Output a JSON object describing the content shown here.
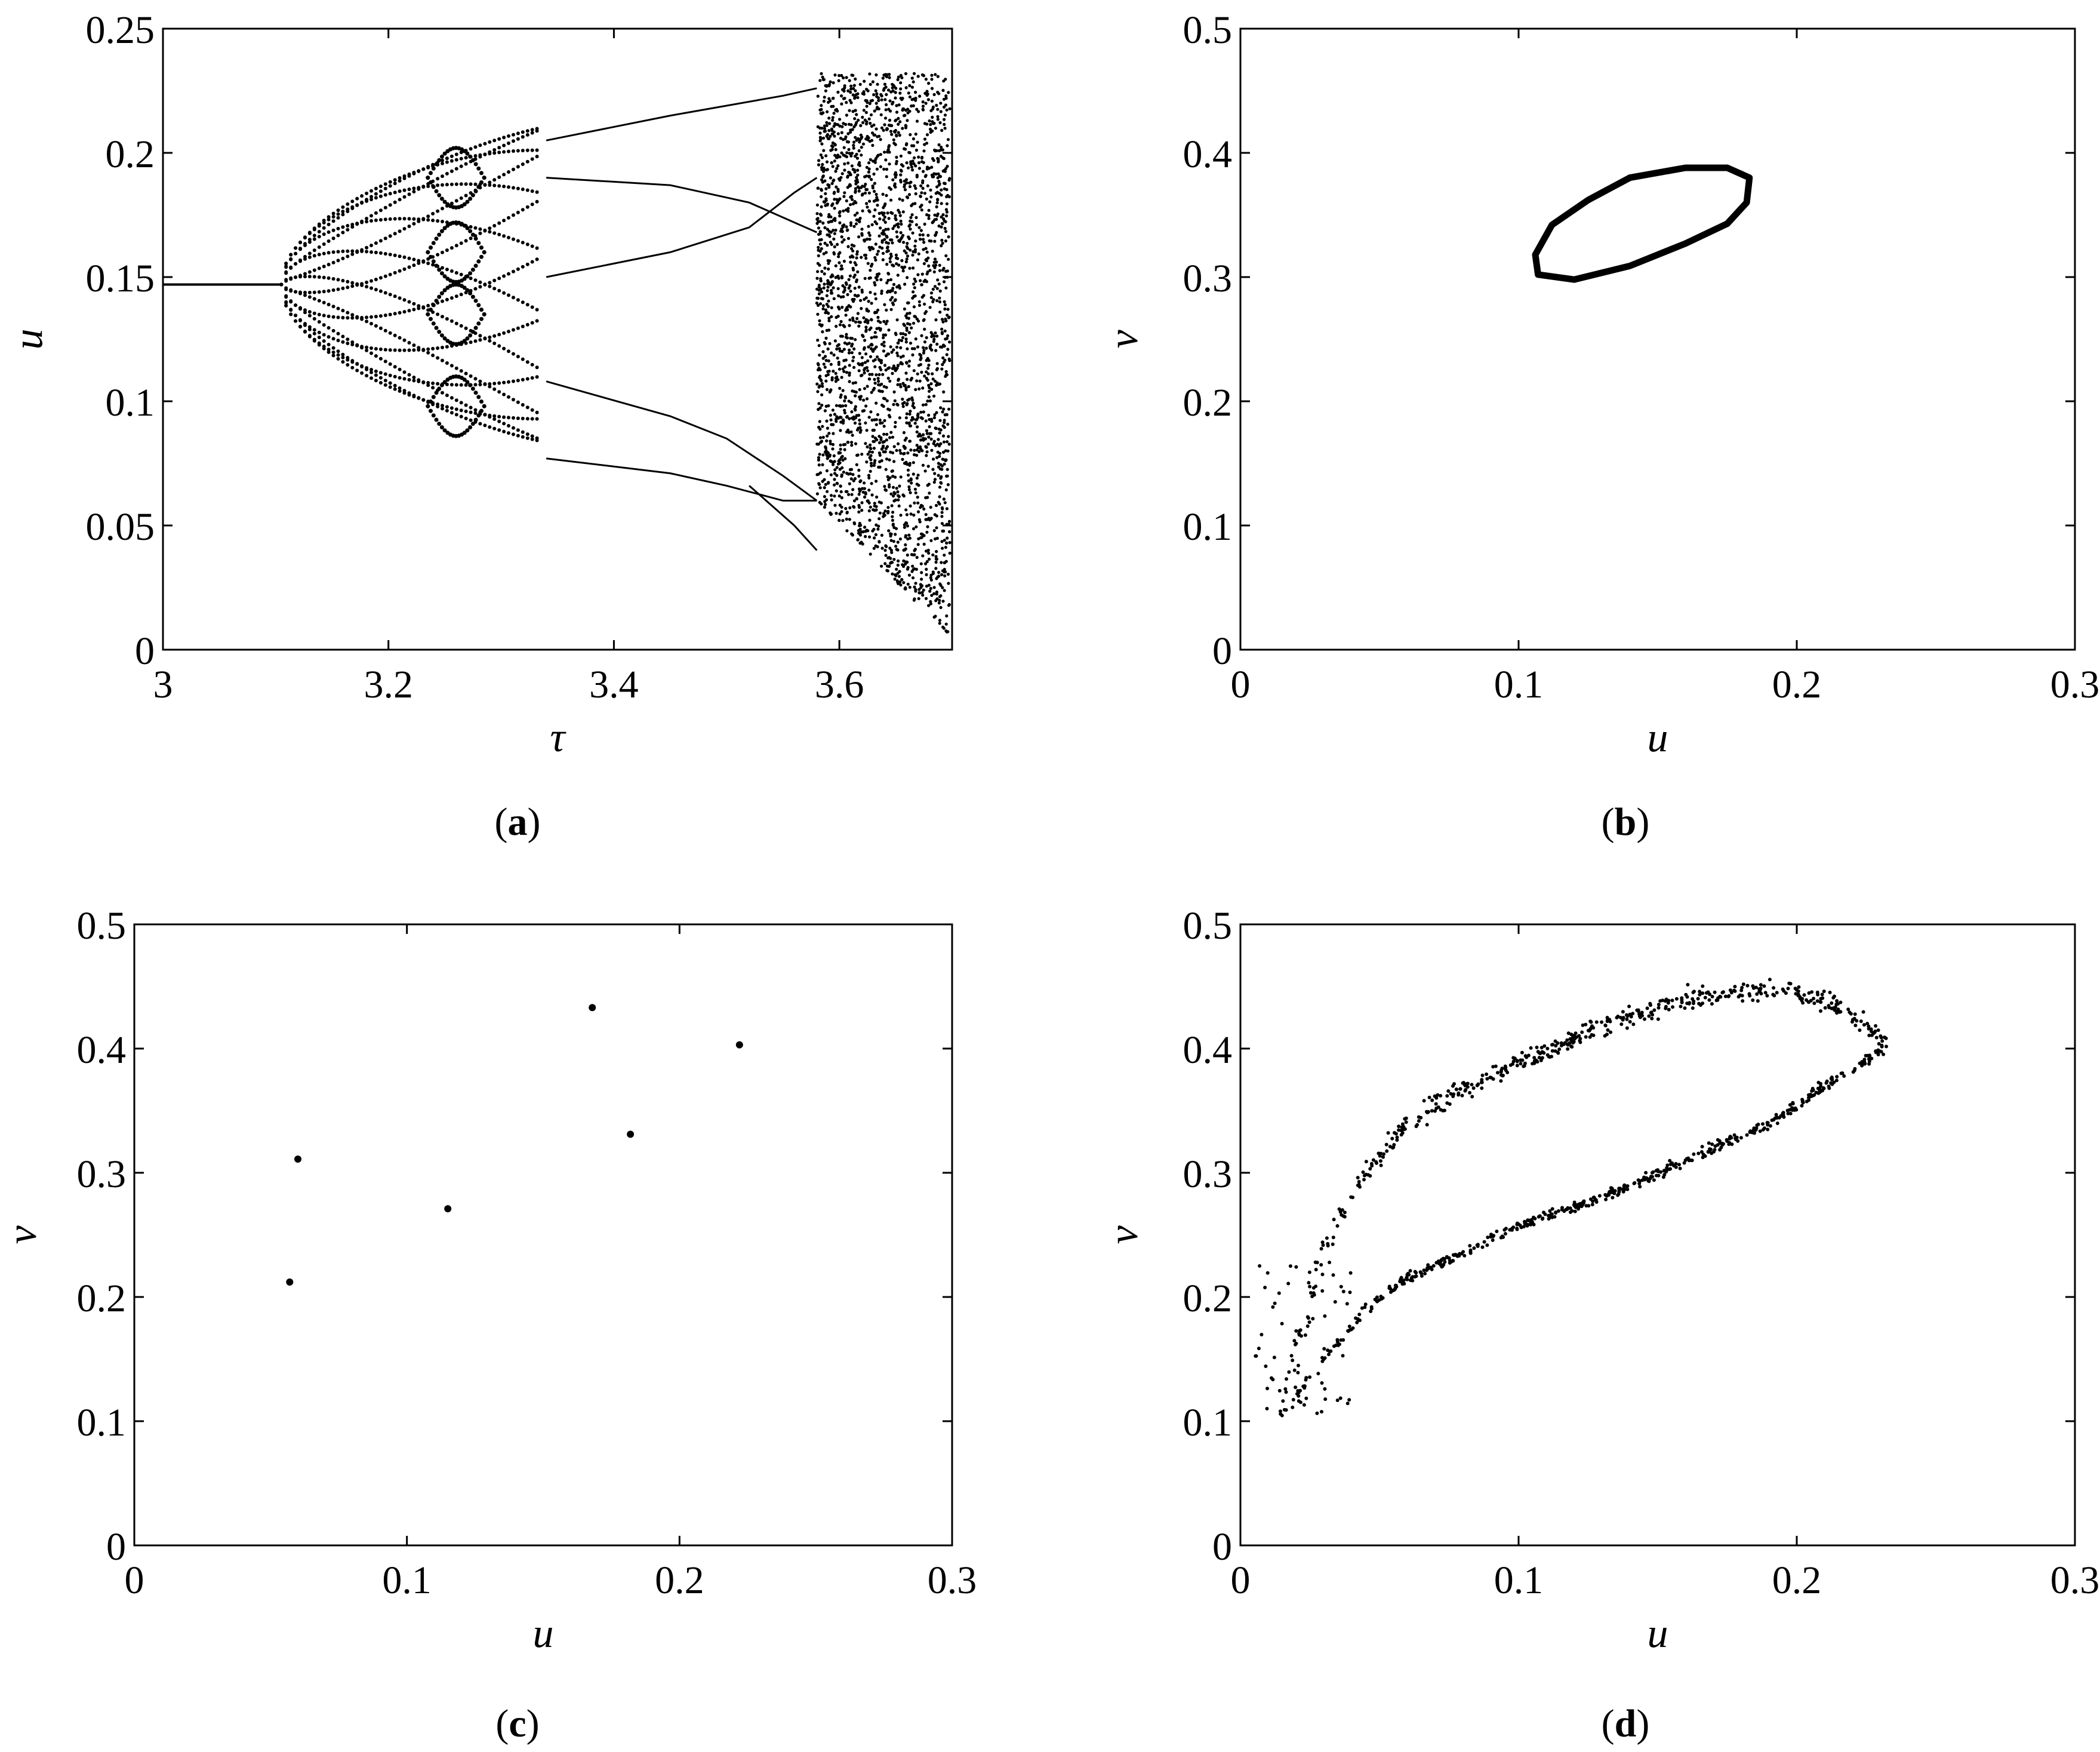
{
  "figure": {
    "panels": [
      {
        "id": "a",
        "caption_open": "(",
        "caption_letter": "a",
        "caption_close": ")"
      },
      {
        "id": "b",
        "caption_open": "(",
        "caption_letter": "b",
        "caption_close": ")"
      },
      {
        "id": "c",
        "caption_open": "(",
        "caption_letter": "c",
        "caption_close": ")"
      },
      {
        "id": "d",
        "caption_open": "(",
        "caption_letter": "d",
        "caption_close": ")"
      }
    ]
  },
  "chart_data": [
    {
      "panel": "a",
      "type": "scatter",
      "description_kind": "bifurcation diagram",
      "xlabel": "τ",
      "ylabel": "u",
      "xlim": [
        3,
        3.7
      ],
      "ylim": [
        0,
        0.25
      ],
      "xticks": [
        "3",
        "3.2",
        "3.4",
        "3.6"
      ],
      "xtick_values": [
        3,
        3.2,
        3.4,
        3.6
      ],
      "yticks": [
        "0",
        "0.05",
        "0.1",
        "0.15",
        "0.2",
        "0.25"
      ],
      "ytick_values": [
        0,
        0.05,
        0.1,
        0.15,
        0.2,
        0.25
      ],
      "grid": false,
      "regimes": [
        {
          "tau_range": [
            3.0,
            3.11
          ],
          "behavior": "fixed point",
          "u": 0.147
        },
        {
          "tau_range": [
            3.11,
            3.34
          ],
          "behavior": "quasi-periodic band",
          "u_range_at_end": [
            0.075,
            0.205
          ]
        },
        {
          "tau_range": [
            3.34,
            3.58
          ],
          "behavior": "period-4 branches",
          "u_start": [
            0.205,
            0.19,
            0.15,
            0.108,
            0.077
          ],
          "u_end": [
            0.226,
            0.19,
            0.168,
            0.098,
            0.06,
            0.04
          ]
        },
        {
          "tau_range": [
            3.58,
            3.7
          ],
          "behavior": "chaos",
          "u_range": [
            0.005,
            0.235
          ]
        }
      ]
    },
    {
      "panel": "b",
      "type": "line",
      "description_kind": "closed invariant curve",
      "xlabel": "u",
      "ylabel": "v",
      "xlim": [
        0,
        0.3
      ],
      "ylim": [
        0,
        0.5
      ],
      "xticks": [
        "0",
        "0.1",
        "0.2",
        "0.3"
      ],
      "xtick_values": [
        0,
        0.1,
        0.2,
        0.3
      ],
      "yticks": [
        "0",
        "0.1",
        "0.2",
        "0.3",
        "0.4",
        "0.5"
      ],
      "ytick_values": [
        0,
        0.1,
        0.2,
        0.3,
        0.4,
        0.5
      ],
      "grid": false,
      "curve": {
        "x": [
          0.107,
          0.12,
          0.14,
          0.16,
          0.175,
          0.182,
          0.183,
          0.175,
          0.16,
          0.14,
          0.125,
          0.112,
          0.106,
          0.107
        ],
        "y": [
          0.302,
          0.298,
          0.309,
          0.327,
          0.343,
          0.36,
          0.38,
          0.388,
          0.388,
          0.38,
          0.362,
          0.342,
          0.318,
          0.302
        ]
      }
    },
    {
      "panel": "c",
      "type": "scatter",
      "description_kind": "period-6 orbit",
      "xlabel": "u",
      "ylabel": "v",
      "xlim": [
        0,
        0.3
      ],
      "ylim": [
        0,
        0.5
      ],
      "xticks": [
        "0",
        "0.1",
        "0.2",
        "0.3"
      ],
      "xtick_values": [
        0,
        0.1,
        0.2,
        0.3
      ],
      "yticks": [
        "0",
        "0.1",
        "0.2",
        "0.3",
        "0.4",
        "0.5"
      ],
      "ytick_values": [
        0,
        0.1,
        0.2,
        0.3,
        0.4,
        0.5
      ],
      "grid": false,
      "points": {
        "x": [
          0.057,
          0.06,
          0.115,
          0.168,
          0.182,
          0.222
        ],
        "y": [
          0.212,
          0.311,
          0.271,
          0.433,
          0.331,
          0.403
        ]
      }
    },
    {
      "panel": "d",
      "type": "scatter",
      "description_kind": "chaotic attractor",
      "xlabel": "u",
      "ylabel": "v",
      "xlim": [
        0,
        0.3
      ],
      "ylim": [
        0,
        0.5
      ],
      "xticks": [
        "0",
        "0.1",
        "0.2",
        "0.3"
      ],
      "xtick_values": [
        0,
        0.1,
        0.2,
        0.3
      ],
      "yticks": [
        "0",
        "0.1",
        "0.2",
        "0.3",
        "0.4",
        "0.5"
      ],
      "ytick_values": [
        0,
        0.1,
        0.2,
        0.3,
        0.4,
        0.5
      ],
      "grid": false,
      "upper_arc": {
        "x": [
          0.015,
          0.03,
          0.045,
          0.06,
          0.08,
          0.1,
          0.13,
          0.16,
          0.19,
          0.21,
          0.225,
          0.232
        ],
        "y": [
          0.105,
          0.24,
          0.3,
          0.34,
          0.368,
          0.388,
          0.418,
          0.44,
          0.448,
          0.44,
          0.42,
          0.4
        ]
      },
      "lower_arc": {
        "x": [
          0.015,
          0.03,
          0.045,
          0.06,
          0.08,
          0.1,
          0.13,
          0.16,
          0.19,
          0.21,
          0.225,
          0.232
        ],
        "y": [
          0.105,
          0.15,
          0.19,
          0.215,
          0.235,
          0.258,
          0.28,
          0.31,
          0.34,
          0.37,
          0.39,
          0.4
        ]
      }
    }
  ]
}
